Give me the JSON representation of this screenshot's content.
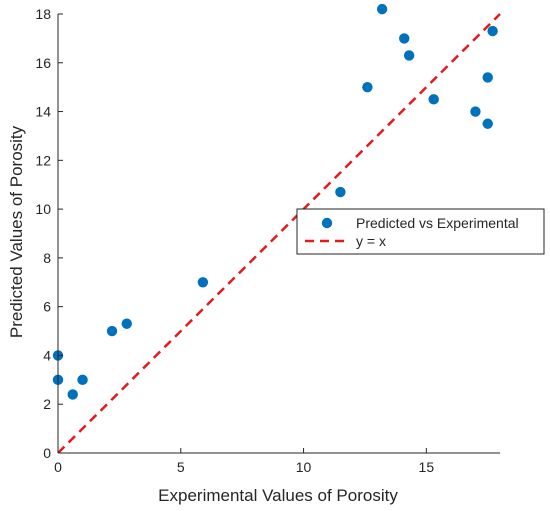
{
  "chart_data": {
    "type": "scatter",
    "title": "",
    "xlabel": "Experimental Values of Porosity",
    "ylabel": "Predicted Values of Porosity",
    "xlim": [
      0,
      18
    ],
    "ylim": [
      0,
      18
    ],
    "xticks": [
      0,
      5,
      10,
      15
    ],
    "yticks": [
      0,
      2,
      4,
      6,
      8,
      10,
      12,
      14,
      16,
      18
    ],
    "grid": false,
    "legend_placement": "center-right",
    "series": [
      {
        "name": "Predicted vs Experimental",
        "color": "#0072BD",
        "marker": "filled-circle",
        "points": [
          {
            "x": 0.0,
            "y": 4.0
          },
          {
            "x": 0.0,
            "y": 3.0
          },
          {
            "x": 0.6,
            "y": 2.4
          },
          {
            "x": 1.0,
            "y": 3.0
          },
          {
            "x": 2.2,
            "y": 5.0
          },
          {
            "x": 2.8,
            "y": 5.3
          },
          {
            "x": 5.9,
            "y": 7.0
          },
          {
            "x": 11.5,
            "y": 10.7
          },
          {
            "x": 12.6,
            "y": 15.0
          },
          {
            "x": 13.2,
            "y": 18.2
          },
          {
            "x": 14.1,
            "y": 17.0
          },
          {
            "x": 14.3,
            "y": 16.3
          },
          {
            "x": 15.3,
            "y": 14.5
          },
          {
            "x": 17.0,
            "y": 14.0
          },
          {
            "x": 17.5,
            "y": 15.4
          },
          {
            "x": 17.5,
            "y": 13.5
          },
          {
            "x": 17.7,
            "y": 17.3
          }
        ]
      },
      {
        "name": "y = x",
        "color": "#E41A1C",
        "line_style": "dashed",
        "line": [
          [
            0,
            0
          ],
          [
            18,
            18
          ]
        ]
      }
    ]
  }
}
